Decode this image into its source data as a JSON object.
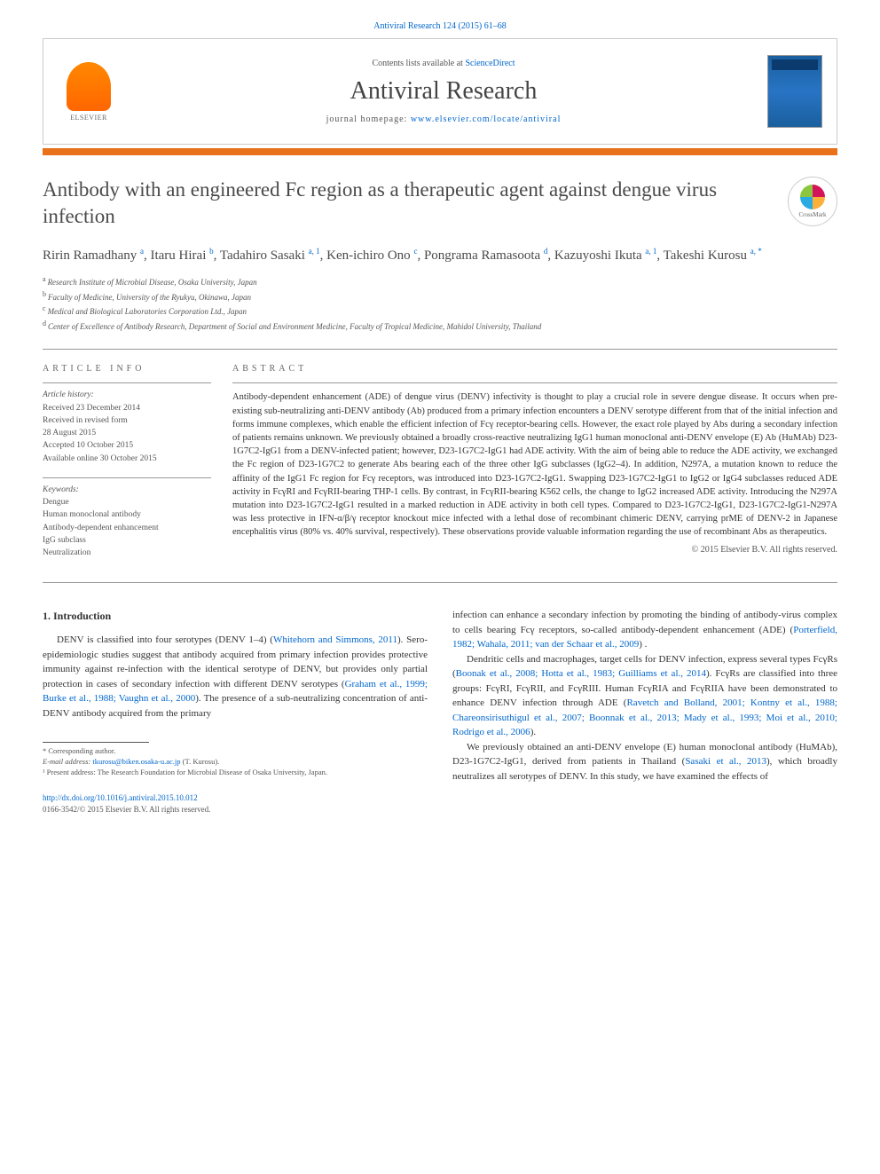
{
  "header": {
    "top_citation": "Antiviral Research 124 (2015) 61–68",
    "contents_prefix": "Contents lists available at ",
    "contents_link": "ScienceDirect",
    "journal_name": "Antiviral Research",
    "homepage_label": "journal homepage: ",
    "homepage_url": "www.elsevier.com/locate/antiviral",
    "publisher_name": "ELSEVIER"
  },
  "crossmark_label": "CrossMark",
  "article": {
    "title": "Antibody with an engineered Fc region as a therapeutic agent against dengue virus infection",
    "authors_html": "Ririn Ramadhany ᵃ, Itaru Hirai ᵇ, Tadahiro Sasaki ᵃ· ¹, Ken-ichiro Ono ᶜ, Pongrama Ramasoota ᵈ, Kazuyoshi Ikuta ᵃ· ¹, Takeshi Kurosu ᵃ· *",
    "authors": [
      {
        "name": "Ririn Ramadhany",
        "sup": "a"
      },
      {
        "name": "Itaru Hirai",
        "sup": "b"
      },
      {
        "name": "Tadahiro Sasaki",
        "sup": "a, 1"
      },
      {
        "name": "Ken-ichiro Ono",
        "sup": "c"
      },
      {
        "name": "Pongrama Ramasoota",
        "sup": "d"
      },
      {
        "name": "Kazuyoshi Ikuta",
        "sup": "a, 1"
      },
      {
        "name": "Takeshi Kurosu",
        "sup": "a, *"
      }
    ],
    "affiliations": [
      {
        "sup": "a",
        "text": "Research Institute of Microbial Disease, Osaka University, Japan"
      },
      {
        "sup": "b",
        "text": "Faculty of Medicine, University of the Ryukyu, Okinawa, Japan"
      },
      {
        "sup": "c",
        "text": "Medical and Biological Laboratories Corporation Ltd., Japan"
      },
      {
        "sup": "d",
        "text": "Center of Excellence of Antibody Research, Department of Social and Environment Medicine, Faculty of Tropical Medicine, Mahidol University, Thailand"
      }
    ]
  },
  "info": {
    "heading": "ARTICLE INFO",
    "history_label": "Article history:",
    "history": [
      "Received 23 December 2014",
      "Received in revised form",
      "28 August 2015",
      "Accepted 10 October 2015",
      "Available online 30 October 2015"
    ],
    "keywords_label": "Keywords:",
    "keywords": [
      "Dengue",
      "Human monoclonal antibody",
      "Antibody-dependent enhancement",
      "IgG subclass",
      "Neutralization"
    ]
  },
  "abstract": {
    "heading": "ABSTRACT",
    "text": "Antibody-dependent enhancement (ADE) of dengue virus (DENV) infectivity is thought to play a crucial role in severe dengue disease. It occurs when pre-existing sub-neutralizing anti-DENV antibody (Ab) produced from a primary infection encounters a DENV serotype different from that of the initial infection and forms immune complexes, which enable the efficient infection of Fcγ receptor-bearing cells. However, the exact role played by Abs during a secondary infection of patients remains unknown. We previously obtained a broadly cross-reactive neutralizing IgG1 human monoclonal anti-DENV envelope (E) Ab (HuMAb) D23-1G7C2-IgG1 from a DENV-infected patient; however, D23-1G7C2-IgG1 had ADE activity. With the aim of being able to reduce the ADE activity, we exchanged the Fc region of D23-1G7C2 to generate Abs bearing each of the three other IgG subclasses (IgG2–4). In addition, N297A, a mutation known to reduce the affinity of the IgG1 Fc region for Fcγ receptors, was introduced into D23-1G7C2-IgG1. Swapping D23-1G7C2-IgG1 to IgG2 or IgG4 subclasses reduced ADE activity in FcγRI and FcγRII-bearing THP-1 cells. By contrast, in FcγRII-bearing K562 cells, the change to IgG2 increased ADE activity. Introducing the N297A mutation into D23-1G7C2-IgG1 resulted in a marked reduction in ADE activity in both cell types. Compared to D23-1G7C2-IgG1, D23-1G7C2-IgG1-N297A was less protective in IFN-α/β/γ receptor knockout mice infected with a lethal dose of recombinant chimeric DENV, carrying prME of DENV-2 in Japanese encephalitis virus (80% vs. 40% survival, respectively). These observations provide valuable information regarding the use of recombinant Abs as therapeutics.",
    "copyright": "© 2015 Elsevier B.V. All rights reserved."
  },
  "body": {
    "intro_heading": "1. Introduction",
    "col1_p1_pre": "DENV is classified into four serotypes (DENV 1–4) (",
    "col1_p1_link1": "Whitehorn and Simmons, 2011",
    "col1_p1_mid1": "). Sero-epidemiologic studies suggest that antibody acquired from primary infection provides protective immunity against re-infection with the identical serotype of DENV, but provides only partial protection in cases of secondary infection with different DENV serotypes (",
    "col1_p1_link2": "Graham et al., 1999; Burke et al., 1988; Vaughn et al., 2000",
    "col1_p1_post": "). The presence of a sub-neutralizing concentration of anti-DENV antibody acquired from the primary",
    "col2_p1_pre": "infection can enhance a secondary infection by promoting the binding of antibody-virus complex to cells bearing Fcγ receptors, so-called antibody-dependent enhancement (ADE) (",
    "col2_p1_link1": "Porterfield, 1982; Wahala, 2011; van der Schaar et al., 2009",
    "col2_p1_post": ") .",
    "col2_p2_pre": "Dendritic cells and macrophages, target cells for DENV infection, express several types FcγRs (",
    "col2_p2_link1": "Boonak et al., 2008; Hotta et al., 1983; Guilliams et al., 2014",
    "col2_p2_mid1": "). FcγRs are classified into three groups: FcγRI, FcγRII, and FcγRIII. Human FcγRIA and FcγRIIA have been demonstrated to enhance DENV infection through ADE (",
    "col2_p2_link2": "Ravetch and Bolland, 2001; Kontny et al., 1988; Chareonsirisuthigul et al., 2007; Boonnak et al., 2013; Mady et al., 1993; Moi et al., 2010; Rodrigo et al., 2006",
    "col2_p2_post": ").",
    "col2_p3_pre": "We previously obtained an anti-DENV envelope (E) human monoclonal antibody (HuMAb), D23-1G7C2-IgG1, derived from patients in Thailand (",
    "col2_p3_link1": "Sasaki et al., 2013",
    "col2_p3_post": "), which broadly neutralizes all serotypes of DENV. In this study, we have examined the effects of"
  },
  "footnotes": {
    "corr_label": "* Corresponding author.",
    "email_label": "E-mail address: ",
    "email": "tkurosu@biken.osaka-u.ac.jp",
    "email_name": " (T. Kurosu).",
    "note1": "¹ Present address: The Research Foundation for Microbial Disease of Osaka University, Japan."
  },
  "doi": {
    "url": "http://dx.doi.org/10.1016/j.antiviral.2015.10.012",
    "issn_line": "0166-3542/© 2015 Elsevier B.V. All rights reserved."
  },
  "colors": {
    "link": "#0066cc",
    "orange_bar": "#e9711c",
    "text": "#333333",
    "muted": "#555555",
    "border": "#999999"
  }
}
